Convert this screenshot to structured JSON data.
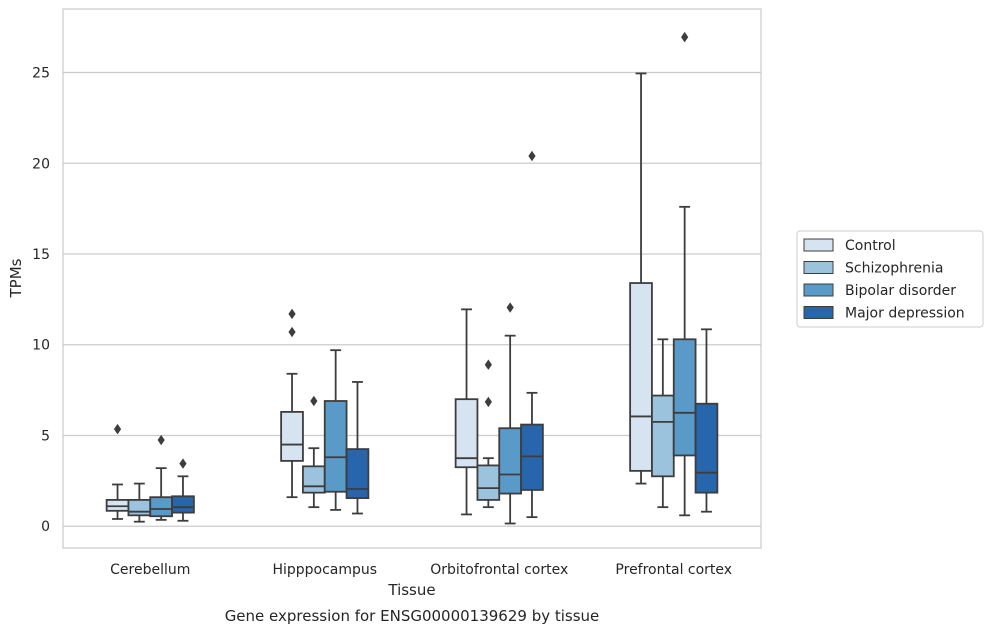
{
  "caption": "Gene expression for ENSG00000139629 by tissue",
  "chart_data": {
    "type": "box",
    "xlabel": "Tissue",
    "ylabel": "TPMs",
    "ylim": [
      -1.2,
      28.5
    ],
    "yticks": [
      0,
      5,
      10,
      15,
      20,
      25
    ],
    "grid": "horizontal",
    "legend_position": "right",
    "categories": [
      "Cerebellum",
      "Hipppocampus",
      "Orbitofrontal cortex",
      "Prefrontal cortex"
    ],
    "series": [
      {
        "name": "Control",
        "color": "#d6e4f2",
        "boxes": [
          {
            "whislo": 0.4,
            "q1": 0.85,
            "med": 1.1,
            "q3": 1.45,
            "whishi": 2.3,
            "fliers": [
              5.35
            ]
          },
          {
            "whislo": 1.6,
            "q1": 3.6,
            "med": 4.5,
            "q3": 6.3,
            "whishi": 8.4,
            "fliers": [
              10.7,
              11.7
            ]
          },
          {
            "whislo": 0.65,
            "q1": 3.25,
            "med": 3.75,
            "q3": 7.0,
            "whishi": 11.95,
            "fliers": []
          },
          {
            "whislo": 2.35,
            "q1": 3.05,
            "med": 6.05,
            "q3": 13.4,
            "whishi": 24.95,
            "fliers": []
          }
        ]
      },
      {
        "name": "Schizophrenia",
        "color": "#9bc3dd",
        "boxes": [
          {
            "whislo": 0.25,
            "q1": 0.6,
            "med": 0.8,
            "q3": 1.45,
            "whishi": 2.35,
            "fliers": []
          },
          {
            "whislo": 1.05,
            "q1": 1.85,
            "med": 2.2,
            "q3": 3.3,
            "whishi": 4.3,
            "fliers": [
              6.9
            ]
          },
          {
            "whislo": 1.05,
            "q1": 1.45,
            "med": 2.1,
            "q3": 3.35,
            "whishi": 3.75,
            "fliers": [
              6.85,
              8.9
            ]
          },
          {
            "whislo": 1.05,
            "q1": 2.75,
            "med": 5.75,
            "q3": 7.2,
            "whishi": 10.3,
            "fliers": []
          }
        ]
      },
      {
        "name": "Bipolar disorder",
        "color": "#5a9ac8",
        "boxes": [
          {
            "whislo": 0.35,
            "q1": 0.55,
            "med": 0.95,
            "q3": 1.6,
            "whishi": 3.2,
            "fliers": [
              4.75
            ]
          },
          {
            "whislo": 0.9,
            "q1": 1.9,
            "med": 3.8,
            "q3": 6.9,
            "whishi": 9.7,
            "fliers": []
          },
          {
            "whislo": 0.15,
            "q1": 1.8,
            "med": 2.85,
            "q3": 5.4,
            "whishi": 10.5,
            "fliers": [
              12.05
            ]
          },
          {
            "whislo": 0.6,
            "q1": 3.9,
            "med": 6.25,
            "q3": 10.3,
            "whishi": 17.6,
            "fliers": [
              26.95
            ]
          }
        ]
      },
      {
        "name": "Major depression",
        "color": "#2766ac",
        "boxes": [
          {
            "whislo": 0.3,
            "q1": 0.75,
            "med": 1.05,
            "q3": 1.65,
            "whishi": 2.75,
            "fliers": [
              3.45
            ]
          },
          {
            "whislo": 0.7,
            "q1": 1.55,
            "med": 2.05,
            "q3": 4.25,
            "whishi": 7.95,
            "fliers": []
          },
          {
            "whislo": 0.5,
            "q1": 2.0,
            "med": 3.85,
            "q3": 5.6,
            "whishi": 7.35,
            "fliers": [
              20.4
            ]
          },
          {
            "whislo": 0.8,
            "q1": 1.85,
            "med": 2.95,
            "q3": 6.75,
            "whishi": 10.85,
            "fliers": []
          }
        ]
      }
    ]
  }
}
